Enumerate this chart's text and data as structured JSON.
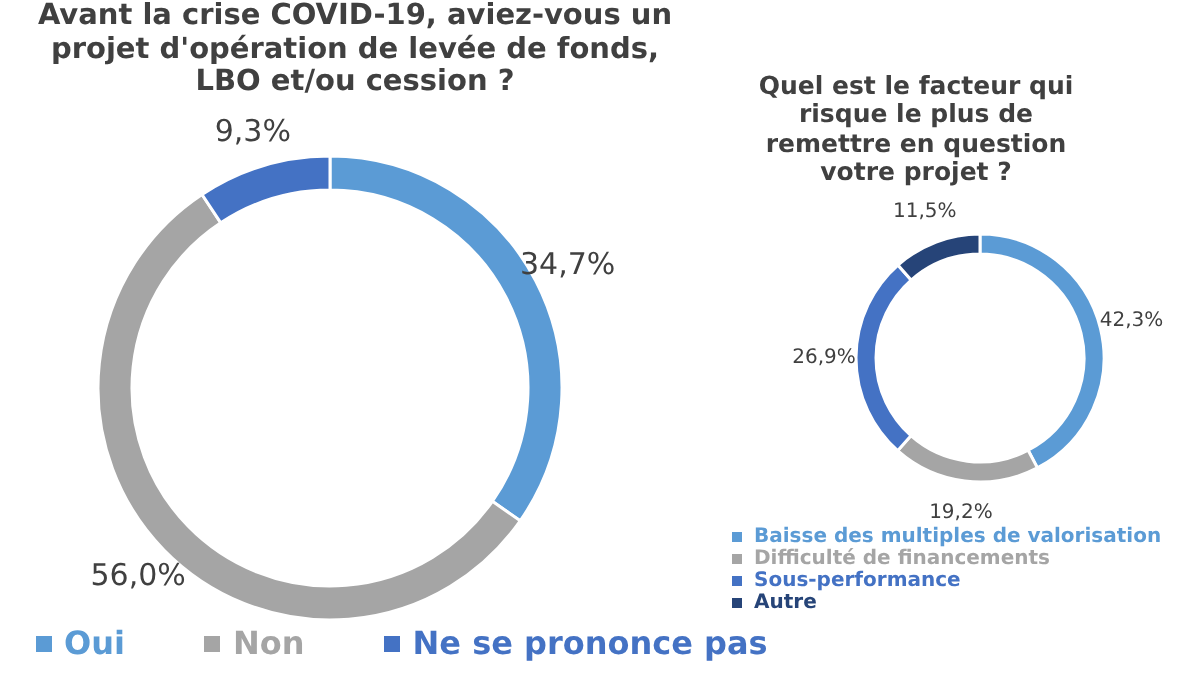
{
  "chart_data": [
    {
      "type": "donut",
      "title": "Avant la crise COVID-19, aviez-vous un projet d'opération de levée de fonds, LBO et/ou cession ?",
      "categories": [
        "Oui",
        "Non",
        "Ne se prononce pas"
      ],
      "values": [
        34.7,
        56.0,
        9.3
      ],
      "colors": [
        "#5b9bd5",
        "#a5a5a5",
        "#4472c4"
      ],
      "value_labels": [
        "34,7%",
        "56,0%",
        "9,3%"
      ],
      "legend": "bottom"
    },
    {
      "type": "donut",
      "title": "Quel est le facteur qui risque le plus de remettre en question votre projet ?",
      "categories": [
        "Baisse des multiples de valorisation",
        "Difficulté de financements",
        "Sous-performance",
        "Autre"
      ],
      "values": [
        42.3,
        19.2,
        26.9,
        11.5
      ],
      "colors": [
        "#5b9bd5",
        "#a5a5a5",
        "#4472c4",
        "#264478"
      ],
      "value_labels": [
        "42,3%",
        "19,2%",
        "26,9%",
        "11,5%"
      ],
      "legend": "bottom left"
    }
  ]
}
